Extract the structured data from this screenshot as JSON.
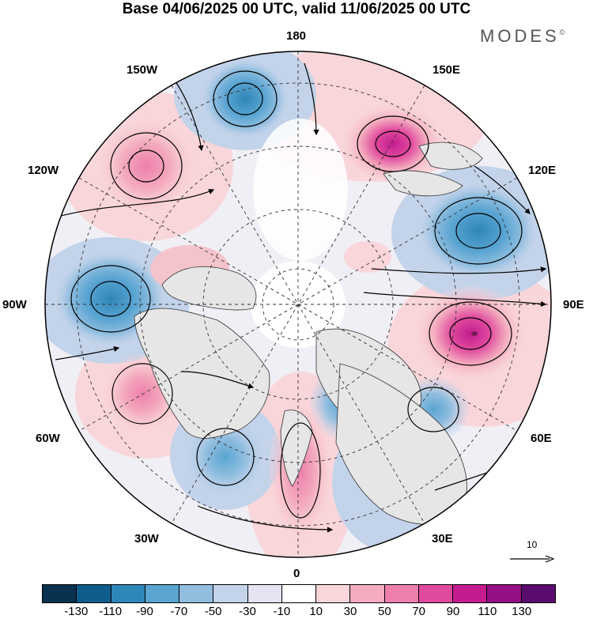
{
  "title": "Base 04/06/2025 00 UTC, valid 11/06/2025 00 UTC",
  "brand": "MODES",
  "brand_mark": "©",
  "longitude_labels": {
    "top": "180",
    "top_right": "150E",
    "right_upper": "120E",
    "right": "90E",
    "right_lower": "60E",
    "bottom_right": "30E",
    "bottom": "0",
    "bottom_left": "30W",
    "left_lower": "60W",
    "left": "90W",
    "left_upper": "120W",
    "top_left": "150W"
  },
  "reference_vector": {
    "value": "10"
  },
  "colorbar": {
    "colors": [
      "#08324f",
      "#0f5d8c",
      "#2f86b9",
      "#5aa5d2",
      "#91bedf",
      "#c3d3ea",
      "#e6e4f2",
      "#ffffff",
      "#f9d6da",
      "#f4acbe",
      "#ee7fad",
      "#e04a9e",
      "#c41c8f",
      "#960f84",
      "#5a0c6e"
    ],
    "tick_labels": [
      "-130",
      "-110",
      "-90",
      "-70",
      "-50",
      "-30",
      "-10",
      "10",
      "30",
      "50",
      "70",
      "90",
      "110",
      "130"
    ]
  }
}
